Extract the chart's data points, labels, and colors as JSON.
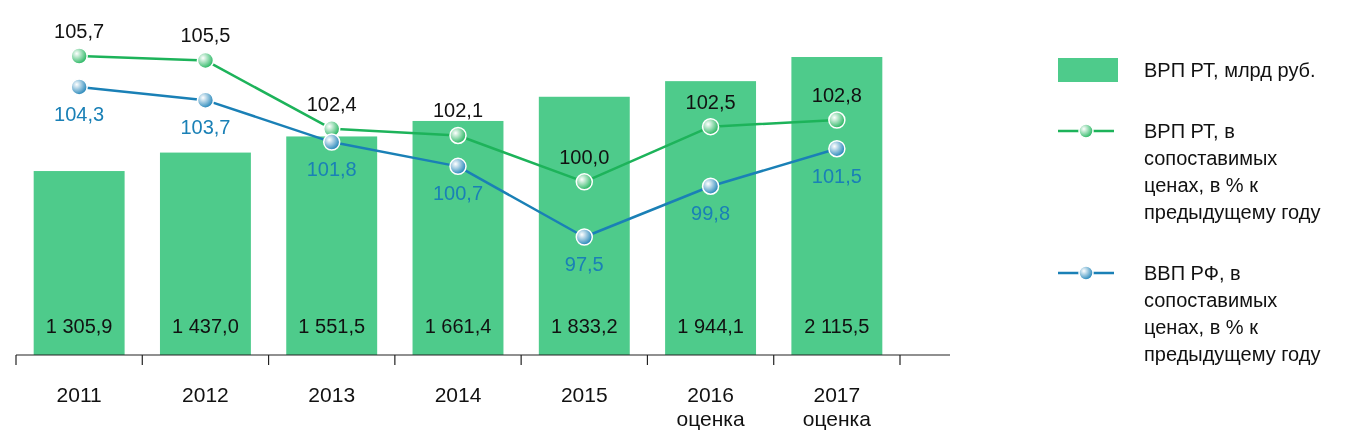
{
  "chart_data": {
    "type": "bar",
    "categories": [
      "2011",
      "2012",
      "2013",
      "2014",
      "2015",
      "2016\nоценка",
      "2017\nоценка"
    ],
    "tick_labels": false,
    "legend": "right",
    "marker": "circle",
    "series": [
      {
        "name": "ВРП РТ, млрд руб.",
        "color": "#4ecb8b",
        "values": [
          1305.9,
          1437.0,
          1551.5,
          1661.4,
          1833.2,
          1944.1,
          2115.5
        ],
        "value_labels": [
          "1 305,9",
          "1 437,0",
          "1 551,5",
          "1 661,4",
          "1 833,2",
          "1 944,1",
          "2 115,5"
        ]
      },
      {
        "name": "ВРП РТ, в сопоставимых ценах, в % к предыдущему году",
        "type": "line",
        "axis": "y2",
        "color": "#1db35a",
        "values": [
          105.7,
          105.5,
          102.4,
          102.1,
          100.0,
          102.5,
          102.8
        ],
        "value_labels": [
          "105,7",
          "105,5",
          "102,4",
          "102,1",
          "100,0",
          "102,5",
          "102,8"
        ]
      },
      {
        "name": "ВВП РФ, в сопоставимых ценах, в % к предыдущему году",
        "type": "line",
        "axis": "y2",
        "color": "#1a80b6",
        "values": [
          104.3,
          103.7,
          101.8,
          100.7,
          97.5,
          99.8,
          101.5
        ],
        "value_labels": [
          "104,3",
          "103,7",
          "101,8",
          "100,7",
          "97,5",
          "99,8",
          "101,5"
        ]
      }
    ]
  }
}
